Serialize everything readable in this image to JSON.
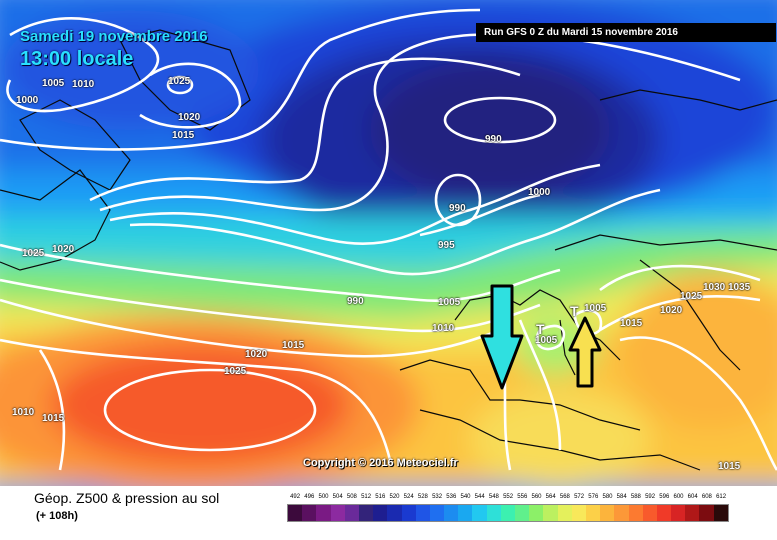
{
  "header": {
    "date_title": "Samedi 19 novembre 2016",
    "time_title": "13:00 locale",
    "run_info": "Run GFS 0 Z du Mardi 15 novembre 2016"
  },
  "map": {
    "isobar_labels": [
      "1005",
      "1010",
      "1000",
      "1025",
      "1020",
      "1015",
      "990",
      "990",
      "1000",
      "995",
      "1025",
      "1020",
      "990",
      "1005",
      "1010",
      "1015",
      "1020",
      "1025",
      "1005",
      "1005",
      "1015",
      "1025",
      "1030",
      "1035",
      "1020",
      "1010",
      "1015",
      "1015"
    ],
    "low_markers": [
      "T",
      "T"
    ],
    "copyright": "Copyright © 2016 Meteociel.fr"
  },
  "legend": {
    "product_title": "Géop. Z500 & pression au sol",
    "lead_time": "(+ 108h)",
    "scale_ticks": [
      "492",
      "496",
      "500",
      "504",
      "508",
      "512",
      "516",
      "520",
      "524",
      "528",
      "532",
      "536",
      "540",
      "544",
      "548",
      "552",
      "556",
      "560",
      "564",
      "568",
      "572",
      "576",
      "580",
      "584",
      "588",
      "592",
      "596",
      "600",
      "604",
      "608",
      "612"
    ],
    "scale_colors": [
      "#3c0a3c",
      "#5a1060",
      "#7a1a84",
      "#8c2aa0",
      "#6a2a9a",
      "#33237a",
      "#1e1e90",
      "#1a2ab0",
      "#1a3ad0",
      "#1f55e6",
      "#1f6ff0",
      "#1c8cf0",
      "#1aa8f0",
      "#22c8f0",
      "#2ee0d8",
      "#3cf0b0",
      "#60f08c",
      "#8cf068",
      "#bcf060",
      "#e4f05c",
      "#f8e85a",
      "#fcd048",
      "#fcb43c",
      "#fc9838",
      "#fc7a30",
      "#f85a2c",
      "#f03a28",
      "#d82424",
      "#b01818",
      "#7c0c10",
      "#2a0a0a"
    ]
  }
}
